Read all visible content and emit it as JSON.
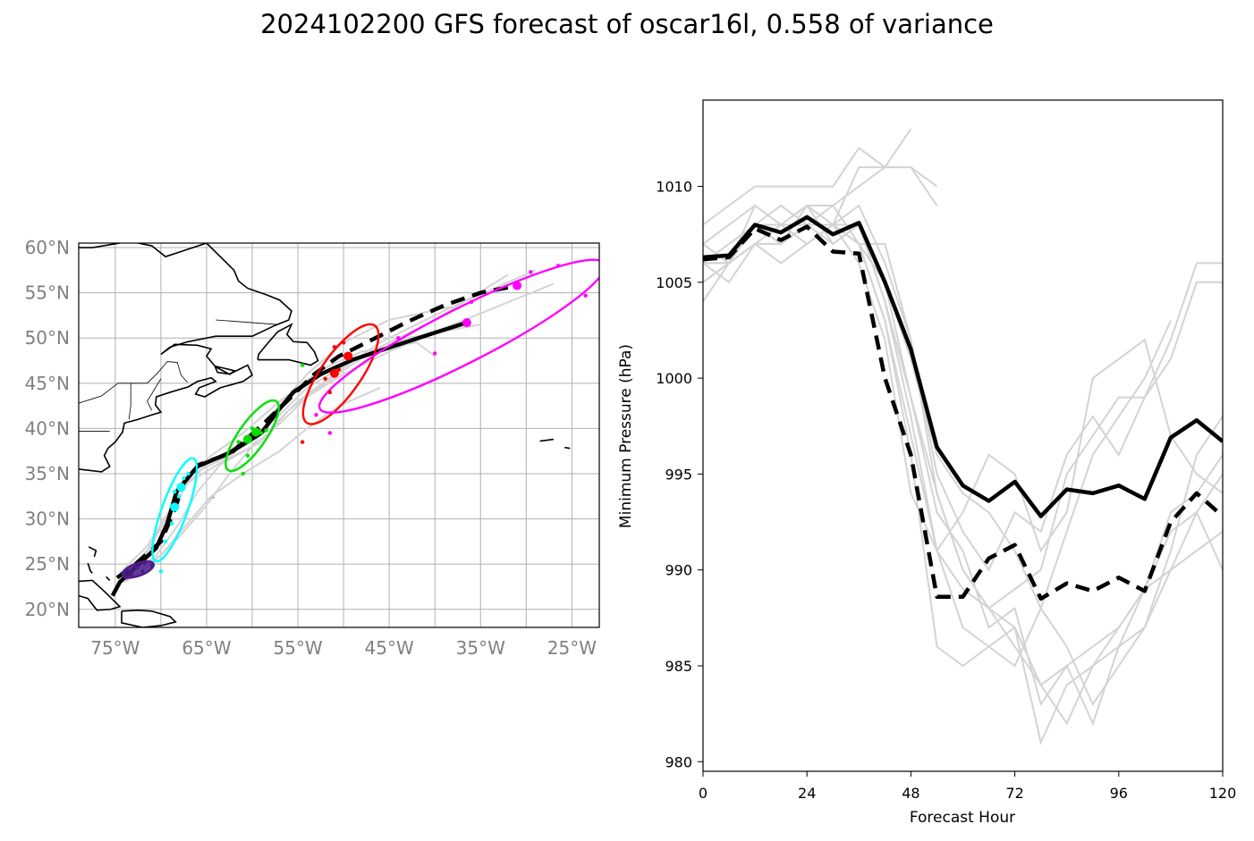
{
  "title": "2024102200 GFS forecast of oscar16l, 0.558 of variance",
  "chart_data": [
    {
      "type": "map",
      "lon_range": [
        -79,
        -22
      ],
      "lat_range": [
        18,
        60.5
      ],
      "x_ticks": [
        -75,
        -65,
        -55,
        -45,
        -35,
        -25
      ],
      "x_tick_labels": [
        "75°W",
        "65°W",
        "55°W",
        "45°W",
        "35°W",
        "25°W"
      ],
      "y_ticks": [
        20,
        25,
        30,
        35,
        40,
        45,
        50,
        55,
        60
      ],
      "y_tick_labels": [
        "20°N",
        "25°N",
        "30°N",
        "35°N",
        "40°N",
        "45°N",
        "50°N",
        "55°N",
        "60°N"
      ],
      "grid": true,
      "colors": {
        "ensemble": "#d3d3d3",
        "mean": "#000000",
        "h24": "#4b1c8a",
        "h48": "#00ffff",
        "h72": "#00e000",
        "h96": "#ff0000",
        "h120": "#ff00ff",
        "tick": "#808080"
      },
      "mean_track_solid": [
        [
          -75.3,
          21.5
        ],
        [
          -74.5,
          23.0
        ],
        [
          -72.7,
          24.7
        ],
        [
          -70.5,
          26.8
        ],
        [
          -69.3,
          29.5
        ],
        [
          -68.3,
          33.0
        ],
        [
          -66.0,
          35.8
        ],
        [
          -62.5,
          37.3
        ],
        [
          -59.0,
          39.5
        ],
        [
          -57.3,
          41.8
        ],
        [
          -55.5,
          44.0
        ],
        [
          -52.5,
          46.0
        ],
        [
          -49.0,
          47.6
        ],
        [
          -44.5,
          49.1
        ],
        [
          -40.0,
          50.6
        ],
        [
          -36.5,
          51.7
        ]
      ],
      "mean_track_dashed": [
        [
          -74.8,
          23.5
        ],
        [
          -73.0,
          24.8
        ],
        [
          -70.0,
          27.5
        ],
        [
          -68.5,
          31.0
        ],
        [
          -67.5,
          34.0
        ],
        [
          -65.8,
          36.0
        ],
        [
          -62.3,
          37.3
        ],
        [
          -58.8,
          40.5
        ],
        [
          -56.0,
          43.2
        ],
        [
          -53.2,
          46.0
        ],
        [
          -50.5,
          48.0
        ],
        [
          -46.5,
          50.0
        ],
        [
          -43.0,
          51.8
        ],
        [
          -39.0,
          53.6
        ],
        [
          -35.0,
          55.0
        ],
        [
          -31.0,
          55.8
        ]
      ],
      "ensemble_tracks": [
        [
          [
            -74,
            24
          ],
          [
            -71.5,
            26.5
          ],
          [
            -69.5,
            30
          ],
          [
            -67,
            34
          ],
          [
            -63,
            36.5
          ],
          [
            -59,
            38.5
          ],
          [
            -56,
            42
          ],
          [
            -52,
            45
          ],
          [
            -47,
            48.5
          ],
          [
            -40,
            52
          ],
          [
            -32,
            57
          ]
        ],
        [
          [
            -73.5,
            24.5
          ],
          [
            -70.5,
            27
          ],
          [
            -68.5,
            31.5
          ],
          [
            -66.5,
            35
          ],
          [
            -62.5,
            37
          ],
          [
            -58,
            40
          ],
          [
            -55,
            43
          ],
          [
            -51,
            46
          ],
          [
            -46,
            49.5
          ],
          [
            -38,
            53.5
          ],
          [
            -29,
            57.5
          ]
        ],
        [
          [
            -74.5,
            23.5
          ],
          [
            -72,
            25.5
          ],
          [
            -70,
            29
          ],
          [
            -68,
            33
          ],
          [
            -65,
            36
          ],
          [
            -61,
            38.5
          ],
          [
            -57.5,
            41
          ],
          [
            -54,
            44.5
          ],
          [
            -49,
            47.5
          ],
          [
            -43,
            50
          ],
          [
            -35,
            51.5
          ]
        ],
        [
          [
            -73,
            24
          ],
          [
            -70,
            26
          ],
          [
            -67.5,
            29
          ],
          [
            -64.5,
            32.5
          ],
          [
            -61,
            35
          ],
          [
            -57,
            37.5
          ],
          [
            -54,
            40
          ],
          [
            -50.5,
            42.5
          ],
          [
            -46,
            44.5
          ]
        ],
        [
          [
            -74,
            23
          ],
          [
            -71,
            25
          ],
          [
            -68,
            28
          ],
          [
            -65,
            31.5
          ],
          [
            -62.5,
            35
          ],
          [
            -60,
            38
          ],
          [
            -57.5,
            42
          ],
          [
            -54,
            46
          ],
          [
            -50,
            49.5
          ],
          [
            -45,
            52
          ],
          [
            -38,
            53.5
          ]
        ],
        [
          [
            -74.5,
            24
          ],
          [
            -71.5,
            27
          ],
          [
            -69,
            31
          ],
          [
            -67,
            35
          ],
          [
            -64.5,
            37
          ],
          [
            -61,
            39.5
          ],
          [
            -57,
            43
          ],
          [
            -52.5,
            46.5
          ],
          [
            -48,
            48.5
          ],
          [
            -42,
            49.5
          ],
          [
            -40,
            48
          ]
        ],
        [
          [
            -73.5,
            23.5
          ],
          [
            -70.5,
            26
          ],
          [
            -68,
            29.5
          ],
          [
            -66,
            33
          ],
          [
            -63.5,
            36
          ],
          [
            -60,
            38
          ],
          [
            -57,
            40.5
          ],
          [
            -54,
            43.5
          ],
          [
            -50,
            46
          ],
          [
            -45,
            48.5
          ],
          [
            -38,
            51.5
          ],
          [
            -27,
            56
          ]
        ]
      ],
      "ellipses": [
        {
          "hour": "h24",
          "lon": -72.5,
          "lat": 24.4,
          "a_deg": 1.8,
          "b_deg": 0.7,
          "angle": -20
        },
        {
          "hour": "h48",
          "lon": -68.5,
          "lat": 31.0,
          "a_deg": 6.0,
          "b_deg": 1.4,
          "angle": -70
        },
        {
          "hour": "h72",
          "lon": -60.0,
          "lat": 39.2,
          "a_deg": 4.6,
          "b_deg": 1.5,
          "angle": -55
        },
        {
          "hour": "h96",
          "lon": -50.3,
          "lat": 46.0,
          "a_deg": 6.5,
          "b_deg": 2.2,
          "angle": -55
        },
        {
          "hour": "h120",
          "lon": -37.0,
          "lat": 50.2,
          "a_deg": 17.5,
          "b_deg": 3.0,
          "angle": -27
        }
      ],
      "mean_markers": [
        {
          "hour": "h48",
          "lon": -68.5,
          "lat": 31.3
        },
        {
          "hour": "h48",
          "lon": -67.8,
          "lat": 33.5
        },
        {
          "hour": "h72",
          "lon": -60.5,
          "lat": 38.8
        },
        {
          "hour": "h72",
          "lon": -59.6,
          "lat": 39.6
        },
        {
          "hour": "h96",
          "lon": -51.0,
          "lat": 46.1
        },
        {
          "hour": "h96",
          "lon": -49.5,
          "lat": 48.0
        },
        {
          "hour": "h120",
          "lon": -36.5,
          "lat": 51.7
        },
        {
          "hour": "h120",
          "lon": -31.0,
          "lat": 55.8
        }
      ],
      "member_points": [
        {
          "hour": "h24",
          "lon": -73.2,
          "lat": 23.8
        },
        {
          "hour": "h24",
          "lon": -72.6,
          "lat": 24.6
        },
        {
          "hour": "h24",
          "lon": -71.8,
          "lat": 25.1
        },
        {
          "hour": "h24",
          "lon": -71.0,
          "lat": 24.8
        },
        {
          "hour": "h24",
          "lon": -73.8,
          "lat": 23.5
        },
        {
          "hour": "h24",
          "lon": -72.0,
          "lat": 24.2
        },
        {
          "hour": "h48",
          "lon": -69.5,
          "lat": 27.5
        },
        {
          "hour": "h48",
          "lon": -68.8,
          "lat": 29.5
        },
        {
          "hour": "h48",
          "lon": -68.0,
          "lat": 32.5
        },
        {
          "hour": "h48",
          "lon": -67.5,
          "lat": 34.5
        },
        {
          "hour": "h48",
          "lon": -67.0,
          "lat": 35.0
        },
        {
          "hour": "h48",
          "lon": -68.5,
          "lat": 33.0
        },
        {
          "hour": "h48",
          "lon": -70.0,
          "lat": 24.2
        },
        {
          "hour": "h72",
          "lon": -61.0,
          "lat": 35.0
        },
        {
          "hour": "h72",
          "lon": -61.5,
          "lat": 38.5
        },
        {
          "hour": "h72",
          "lon": -60.0,
          "lat": 40.0
        },
        {
          "hour": "h72",
          "lon": -59.0,
          "lat": 39.5
        },
        {
          "hour": "h72",
          "lon": -60.5,
          "lat": 37.0
        },
        {
          "hour": "h72",
          "lon": -58.5,
          "lat": 39.8
        },
        {
          "hour": "h72",
          "lon": -54.5,
          "lat": 47.0
        },
        {
          "hour": "h96",
          "lon": -54.5,
          "lat": 38.5
        },
        {
          "hour": "h96",
          "lon": -51.5,
          "lat": 44.0
        },
        {
          "hour": "h96",
          "lon": -50.0,
          "lat": 49.5
        },
        {
          "hour": "h96",
          "lon": -51.0,
          "lat": 49.0
        },
        {
          "hour": "h96",
          "lon": -52.0,
          "lat": 45.5
        },
        {
          "hour": "h96",
          "lon": -50.5,
          "lat": 46.5
        },
        {
          "hour": "h120",
          "lon": -51.5,
          "lat": 39.5
        },
        {
          "hour": "h120",
          "lon": -44.0,
          "lat": 50.0
        },
        {
          "hour": "h120",
          "lon": -40.0,
          "lat": 48.3
        },
        {
          "hour": "h120",
          "lon": -36.0,
          "lat": 54.0
        },
        {
          "hour": "h120",
          "lon": -29.5,
          "lat": 57.3
        },
        {
          "hour": "h120",
          "lon": -26.5,
          "lat": 58.0
        },
        {
          "hour": "h120",
          "lon": -23.5,
          "lat": 54.7
        },
        {
          "hour": "h120",
          "lon": -53.0,
          "lat": 41.5
        }
      ]
    },
    {
      "type": "line",
      "xlabel": "Forecast Hour",
      "ylabel": "Minimum Pressure (hPa)",
      "xlim": [
        0,
        120
      ],
      "ylim": [
        979.5,
        1014.5
      ],
      "x_ticks": [
        0,
        24,
        48,
        72,
        96,
        120
      ],
      "y_ticks": [
        980,
        985,
        990,
        995,
        1000,
        1005,
        1010
      ],
      "grid": false,
      "colors": {
        "ensemble": "#d3d3d3",
        "mean": "#000000"
      },
      "x": [
        0,
        6,
        12,
        18,
        24,
        30,
        36,
        42,
        48,
        54,
        60,
        66,
        72,
        78,
        84,
        90,
        96,
        102,
        108,
        114,
        120
      ],
      "series": [
        {
          "style": "solid",
          "values": [
            1006.3,
            1006.4,
            1008.0,
            1007.6,
            1008.4,
            1007.5,
            1008.1,
            1005.0,
            1001.5,
            996.4,
            994.4,
            993.6,
            994.6,
            992.8,
            994.2,
            994.0,
            994.4,
            993.7,
            996.9,
            997.8,
            996.7
          ]
        },
        {
          "style": "dashed",
          "values": [
            1006.2,
            1006.3,
            1007.8,
            1007.2,
            1007.9,
            1006.6,
            1006.5,
            1000.0,
            996.0,
            988.6,
            988.6,
            990.6,
            991.3,
            988.5,
            989.3,
            988.9,
            989.6,
            988.9,
            992.5,
            994.0,
            992.8
          ]
        }
      ],
      "ensemble": [
        [
          1006,
          1006,
          1008,
          1007,
          1009,
          1009,
          1010,
          1011,
          1013
        ],
        [
          1008,
          1009,
          1010,
          1010,
          1010,
          1010,
          1012,
          1011,
          1011,
          1010
        ],
        [
          1007,
          1008,
          1009,
          1008,
          1009,
          1008,
          1011,
          1011,
          1011,
          1009
        ],
        [
          1005,
          1006,
          1009,
          1008,
          1008,
          1009,
          1007,
          1007,
          1002,
          994,
          990,
          988,
          986,
          984,
          982,
          985,
          986,
          989,
          992,
          993,
          995
        ],
        [
          1006,
          1006,
          1007,
          1007,
          1008,
          1008,
          1008,
          1005,
          999,
          993,
          991,
          987,
          988,
          983,
          985,
          982,
          986,
          987,
          991,
          996,
          998
        ],
        [
          1004,
          1006,
          1007,
          1008,
          1007,
          1008,
          1007,
          1003,
          997,
          991,
          989,
          988,
          987,
          981,
          984,
          985,
          987,
          989,
          993,
          994,
          996
        ],
        [
          1005,
          1006,
          1008,
          1007,
          1009,
          1007,
          1008,
          1004,
          998,
          991,
          987,
          986,
          985,
          988,
          992,
          996,
          998,
          1000,
          1003
        ],
        [
          1006,
          1007,
          1008,
          1009,
          1008,
          1008,
          1009,
          1006,
          1002,
          995,
          992,
          990,
          993,
          992,
          996,
          998,
          996,
          999,
          1002,
          1006,
          1006
        ],
        [
          1007,
          1006,
          1008,
          1008,
          1009,
          1008,
          1007,
          1005,
          1001,
          996,
          994,
          993,
          991,
          988,
          986,
          983,
          985,
          987,
          990,
          993,
          990
        ],
        [
          1006,
          1006,
          1007,
          1007,
          1008,
          1007,
          1008,
          1004,
          999,
          994,
          990,
          988,
          989,
          990,
          995,
          997,
          999,
          999,
          1001,
          1005,
          1005
        ],
        [
          1006,
          1005,
          1007,
          1006,
          1007,
          1008,
          1007,
          1003,
          996,
          986,
          985,
          986,
          987,
          984,
          985,
          986,
          987,
          989,
          990,
          991,
          992
        ],
        [
          1005,
          1006,
          1008,
          1007,
          1008,
          1008,
          1006,
          1002,
          994,
          991,
          993,
          996,
          995,
          991,
          993,
          1000,
          1001,
          1002,
          997,
          995,
          994
        ]
      ]
    }
  ]
}
